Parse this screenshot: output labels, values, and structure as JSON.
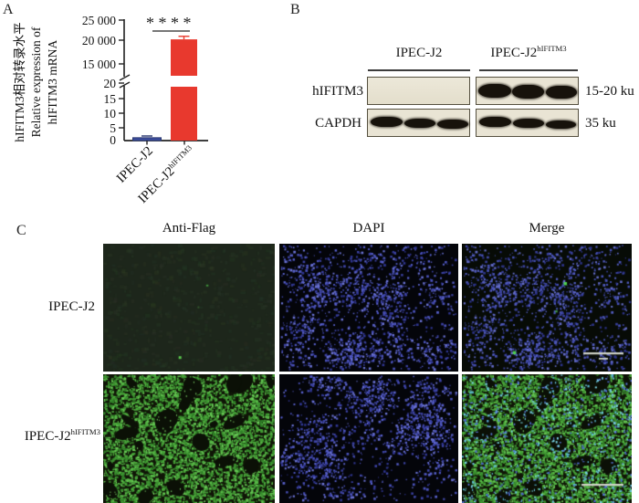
{
  "panelA": {
    "label": "A",
    "ylabel_lines": [
      "hIFITM3相对转录水平",
      "Relative expression of",
      "hIFITM3 mRNA"
    ],
    "xlabels": [
      {
        "base": "IPEC-J2",
        "sup": ""
      },
      {
        "base": "IPEC-J2",
        "sup": "hIFITM3"
      }
    ],
    "significance": "****"
  },
  "panelB": {
    "label": "B",
    "group_headers": [
      {
        "base": "IPEC-J2",
        "sup": ""
      },
      {
        "base": "IPEC-J2",
        "sup": "hIFITM3"
      }
    ],
    "row_labels": [
      "hIFITM3",
      "CAPDH"
    ],
    "size_labels": [
      "15-20 ku",
      "35 ku"
    ]
  },
  "panelC": {
    "label": "C",
    "col_headers": [
      "Anti-Flag",
      "DAPI",
      "Merge"
    ],
    "row_labels": [
      {
        "base": "IPEC-J2",
        "sup": ""
      },
      {
        "base": "IPEC-J2",
        "sup": "hIFITM3"
      }
    ]
  },
  "chart_data": {
    "type": "bar",
    "categories": [
      "IPEC-J2",
      "IPEC-J2^hIFITM3"
    ],
    "values": [
      1,
      20600
    ],
    "errors": [
      0.6,
      700
    ],
    "bar_colors": [
      "#3c4e9f",
      "#e8392e"
    ],
    "bar_edge_colors": [
      "#28366f",
      "#e8392e"
    ],
    "title": "",
    "xlabel": "",
    "ylabel": "hIFITM3相对转录水平 / Relative expression of hIFITM3 mRNA",
    "axis_break": true,
    "lower_axis": {
      "range": [
        0,
        20
      ],
      "ticks": [
        "0",
        "5",
        "10",
        "15",
        "20"
      ]
    },
    "upper_axis": {
      "range": [
        15000,
        25000
      ],
      "ticks": [
        "15 000",
        "20 000",
        "25 000"
      ]
    },
    "significance": "****",
    "grid": false,
    "legend": "none"
  }
}
